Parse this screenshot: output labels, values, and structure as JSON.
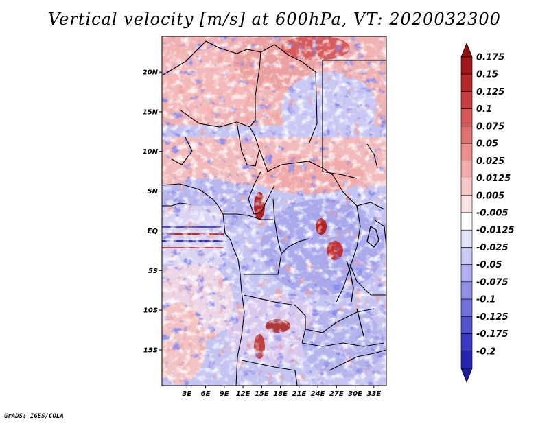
{
  "title": "Vertical velocity [m/s] at 600hPa, VT: 2020032300",
  "credit": "GrADS: IGES/COLA",
  "map": {
    "lon_range": [
      -1,
      35
    ],
    "lat_range": [
      -19.5,
      24.5
    ],
    "lat_ticks": [
      {
        "value": 20,
        "label": "20N"
      },
      {
        "value": 15,
        "label": "15N"
      },
      {
        "value": 10,
        "label": "10N"
      },
      {
        "value": 5,
        "label": "5N"
      },
      {
        "value": 0,
        "label": "EQ"
      },
      {
        "value": -5,
        "label": "5S"
      },
      {
        "value": -10,
        "label": "10S"
      },
      {
        "value": -15,
        "label": "15S"
      }
    ],
    "lon_ticks": [
      {
        "value": 3,
        "label": "3E"
      },
      {
        "value": 6,
        "label": "6E"
      },
      {
        "value": 9,
        "label": "9E"
      },
      {
        "value": 12,
        "label": "12E"
      },
      {
        "value": 15,
        "label": "15E"
      },
      {
        "value": 18,
        "label": "18E"
      },
      {
        "value": 21,
        "label": "21E"
      },
      {
        "value": 24,
        "label": "24E"
      },
      {
        "value": 27,
        "label": "27E"
      },
      {
        "value": 30,
        "label": "30E"
      },
      {
        "value": 33,
        "label": "33E"
      }
    ]
  },
  "colorbar": {
    "levels": [
      {
        "label": "0.175",
        "color": "#a01818"
      },
      {
        "label": "0.15",
        "color": "#b72a2a"
      },
      {
        "label": "0.125",
        "color": "#c84040"
      },
      {
        "label": "0.1",
        "color": "#d85858"
      },
      {
        "label": "0.075",
        "color": "#e27272"
      },
      {
        "label": "0.05",
        "color": "#eb8e8e"
      },
      {
        "label": "0.025",
        "color": "#f2aaaa"
      },
      {
        "label": "0.0125",
        "color": "#f7c6c6"
      },
      {
        "label": "0.005",
        "color": "#fbe2e2"
      },
      {
        "label": "-0.005",
        "color": "#ffffff"
      },
      {
        "label": "-0.0125",
        "color": "#e2e2fb"
      },
      {
        "label": "-0.025",
        "color": "#c8c8f6"
      },
      {
        "label": "-0.05",
        "color": "#aeaef0"
      },
      {
        "label": "-0.075",
        "color": "#9090e6"
      },
      {
        "label": "-0.1",
        "color": "#7272dc"
      },
      {
        "label": "-0.125",
        "color": "#5454cf"
      },
      {
        "label": "-0.175",
        "color": "#3838c0"
      },
      {
        "label": "-0.2",
        "color": "#2424b0"
      }
    ],
    "top_color": "#901010",
    "bottom_color": "#1c1ca0"
  }
}
